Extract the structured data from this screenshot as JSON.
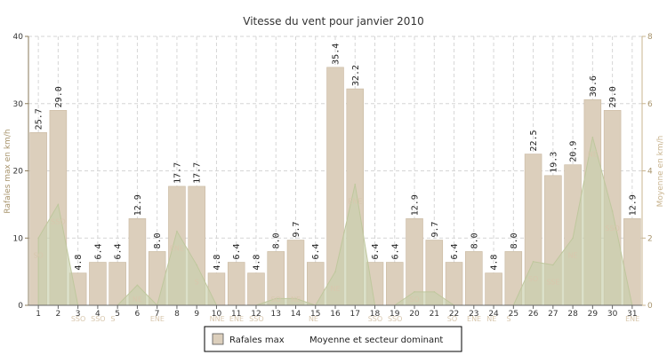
{
  "chart_data": {
    "type": "bar",
    "title": "Vitesse du vent pour janvier 2010",
    "ylabel_left": "Rafales max en km/h",
    "ylabel_right": "Moyenne en km/h",
    "ylim_left": [
      0,
      40
    ],
    "yticks_left": [
      0,
      10,
      20,
      30,
      40
    ],
    "ylim_right": [
      0,
      8
    ],
    "yticks_right": [
      0,
      2,
      4,
      6,
      8
    ],
    "grid": true,
    "legend_position": "bottom",
    "colors": {
      "bar": "#dccfbc",
      "bar_stroke": "#c9b8a0",
      "area": "#c7cfac",
      "area_stroke": "#bfc79d",
      "direction_text": "#d8c7ad",
      "axis_right": "#c9b48f",
      "axis_left": "#8a7a5a",
      "grid": "#d6d6d6"
    },
    "categories": [
      "1",
      "2",
      "3",
      "4",
      "5",
      "6",
      "7",
      "8",
      "9",
      "10",
      "11",
      "12",
      "13",
      "14",
      "15",
      "16",
      "17",
      "18",
      "19",
      "20",
      "21",
      "22",
      "23",
      "24",
      "25",
      "26",
      "27",
      "28",
      "29",
      "30",
      "31"
    ],
    "series": [
      {
        "name": "Rafales max",
        "type": "bar",
        "axis": "left",
        "values": [
          25.7,
          29.0,
          4.8,
          6.4,
          6.4,
          12.9,
          8.0,
          17.7,
          17.7,
          4.8,
          6.4,
          4.8,
          8.0,
          9.7,
          6.4,
          35.4,
          32.2,
          6.4,
          6.4,
          12.9,
          9.7,
          6.4,
          8.0,
          4.8,
          8.0,
          22.5,
          19.3,
          20.9,
          30.6,
          29.0,
          12.9
        ],
        "labels": [
          "25.7",
          "29.0",
          "4.8",
          "6.4",
          "6.4",
          "12.9",
          "8.0",
          "17.7",
          "17.7",
          "4.8",
          "6.4",
          "4.8",
          "8.0",
          "9.7",
          "6.4",
          "35.4",
          "32.2",
          "6.4",
          "6.4",
          "12.9",
          "9.7",
          "6.4",
          "8.0",
          "4.8",
          "8.0",
          "22.5",
          "19.3",
          "20.9",
          "30.6",
          "29.0",
          "12.9"
        ]
      },
      {
        "name": "Moyenne et secteur dominant",
        "type": "area",
        "axis": "right",
        "values": [
          2.0,
          3.0,
          0.0,
          0.0,
          0.0,
          0.6,
          0.0,
          2.2,
          1.2,
          0.0,
          0.0,
          0.0,
          0.2,
          0.2,
          0.0,
          1.0,
          3.6,
          0.0,
          0.0,
          0.4,
          0.4,
          0.0,
          0.0,
          0.0,
          0.0,
          1.3,
          1.2,
          2.0,
          5.0,
          2.8,
          0.0
        ],
        "directions": [
          "SO",
          "SSO",
          "SSO",
          "SSO",
          "S",
          "NE",
          "ENE",
          "ENE",
          "S",
          "NNE",
          "ENE",
          "SSO",
          "SO",
          "NE",
          "NE",
          "NE",
          "ENE",
          "SSO",
          "SSO",
          "SO",
          "",
          "SO",
          "ENE",
          "NE",
          "S",
          "SO",
          "SSE",
          "NE",
          "NE",
          "SSO",
          "ENE"
        ]
      }
    ]
  }
}
